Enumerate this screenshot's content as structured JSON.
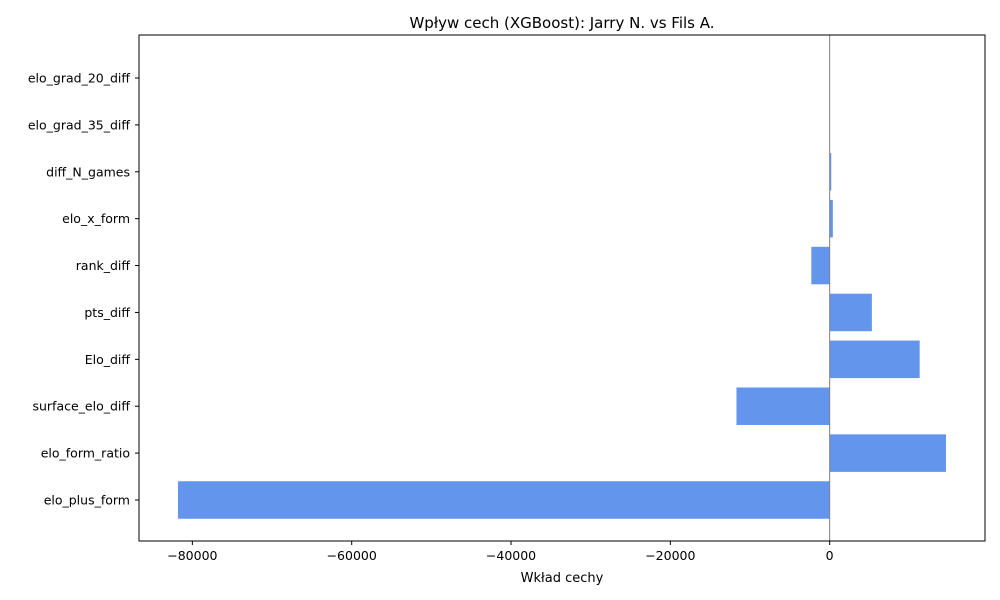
{
  "chart_data": {
    "type": "bar",
    "orientation": "horizontal",
    "title": "Wpływ cech (XGBoost): Jarry N. vs Fils A.",
    "xlabel": "Wkład cechy",
    "ylabel": "",
    "categories": [
      "elo_grad_20_diff",
      "elo_grad_35_diff",
      "diff_N_games",
      "elo_x_form",
      "rank_diff",
      "pts_diff",
      "Elo_diff",
      "surface_elo_diff",
      "elo_form_ratio",
      "elo_plus_form"
    ],
    "values": [
      0,
      0,
      200,
      400,
      -2300,
      5300,
      11300,
      -11700,
      14600,
      -81800
    ],
    "xlim": [
      -86700,
      19500
    ],
    "xticks": [
      -80000,
      -60000,
      -40000,
      -20000,
      0
    ],
    "xtick_labels": [
      "−80000",
      "−60000",
      "−40000",
      "−20000",
      "0"
    ],
    "bar_color": "#6495ed",
    "zero_line_color": "#808080",
    "grid": false,
    "legend": false
  }
}
